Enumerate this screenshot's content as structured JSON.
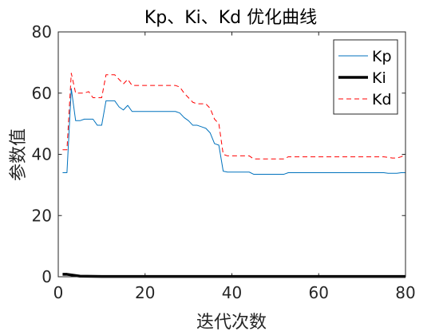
{
  "chart_data": {
    "type": "line",
    "title": "Kp、Ki、Kd 优化曲线",
    "xlabel": "迭代次数",
    "ylabel": "参数值",
    "xlim": [
      0,
      80
    ],
    "ylim": [
      0,
      80
    ],
    "xticks": [
      "0",
      "20",
      "40",
      "60",
      "80"
    ],
    "yticks": [
      "0",
      "20",
      "40",
      "60",
      "80"
    ],
    "grid": false,
    "legend_position": "top-right",
    "series": [
      {
        "name": "Kp",
        "color": "#0072BD",
        "style": "solid",
        "width": 1,
        "x": [
          1,
          2,
          3,
          4,
          5,
          6,
          7,
          8,
          9,
          10,
          11,
          12,
          13,
          14,
          15,
          16,
          17,
          18,
          19,
          20,
          21,
          22,
          23,
          24,
          25,
          26,
          27,
          28,
          29,
          30,
          31,
          32,
          33,
          34,
          35,
          36,
          37,
          38,
          39,
          40,
          41,
          42,
          43,
          44,
          45,
          46,
          47,
          48,
          49,
          50,
          51,
          52,
          53,
          54,
          55,
          56,
          57,
          58,
          59,
          60,
          61,
          62,
          63,
          64,
          65,
          66,
          67,
          68,
          69,
          70,
          71,
          72,
          73,
          74,
          75,
          76,
          77,
          78,
          79,
          80
        ],
        "y": [
          34,
          34,
          61.5,
          51,
          51,
          51.5,
          51.5,
          51.5,
          49.5,
          49.5,
          57.5,
          57.5,
          57.5,
          55.5,
          54.5,
          56,
          54,
          54,
          54,
          54,
          54,
          54,
          54,
          54,
          54,
          54,
          54,
          53.5,
          52,
          51,
          49.5,
          49.5,
          49,
          48.5,
          47,
          43.5,
          43,
          34.5,
          34.2,
          34.2,
          34.2,
          34.2,
          34.2,
          34.2,
          33.5,
          33.5,
          33.5,
          33.5,
          33.5,
          33.5,
          33.5,
          33.5,
          34,
          34,
          34,
          34,
          34,
          34,
          34,
          34,
          34,
          34,
          34,
          34,
          34,
          34,
          34,
          34,
          34,
          34,
          34,
          34,
          34,
          34,
          34,
          33.8,
          33.8,
          33.8,
          34,
          34
        ]
      },
      {
        "name": "Ki",
        "color": "#000000",
        "style": "solid",
        "width": 3.5,
        "x": [
          1,
          2,
          3,
          4,
          5,
          10,
          20,
          30,
          40,
          50,
          60,
          70,
          80
        ],
        "y": [
          0.8,
          0.8,
          0.6,
          0.4,
          0.2,
          0.1,
          0.1,
          0.1,
          0.1,
          0.1,
          0.1,
          0.1,
          0.1
        ]
      },
      {
        "name": "Kd",
        "color": "#FF0000",
        "style": "dashed",
        "width": 1,
        "x": [
          1,
          2,
          3,
          4,
          5,
          6,
          7,
          8,
          9,
          10,
          11,
          12,
          13,
          14,
          15,
          16,
          17,
          18,
          19,
          20,
          21,
          22,
          23,
          24,
          25,
          26,
          27,
          28,
          29,
          30,
          31,
          32,
          33,
          34,
          35,
          36,
          37,
          38,
          39,
          40,
          41,
          42,
          43,
          44,
          45,
          46,
          47,
          48,
          49,
          50,
          51,
          52,
          53,
          54,
          55,
          56,
          57,
          58,
          59,
          60,
          61,
          62,
          63,
          64,
          65,
          66,
          67,
          68,
          69,
          70,
          71,
          72,
          73,
          74,
          75,
          76,
          77,
          78,
          79,
          80
        ],
        "y": [
          41.5,
          41.5,
          66.5,
          60,
          60,
          60,
          60.5,
          58.5,
          58.5,
          58.5,
          66,
          66,
          66,
          64.5,
          63,
          64.5,
          62.5,
          62.5,
          62.5,
          62.5,
          62.5,
          62.5,
          62.5,
          62.5,
          62.5,
          62.5,
          62.5,
          62,
          60,
          58.5,
          57,
          56.5,
          56.5,
          56.5,
          55,
          51.5,
          50,
          40,
          39.5,
          39.5,
          39.5,
          39.5,
          39.5,
          39.5,
          38.5,
          38.5,
          38.5,
          38.5,
          38.5,
          38.5,
          38.5,
          38.5,
          39.2,
          39.2,
          39.2,
          39.2,
          39.2,
          39.2,
          39.2,
          39.2,
          39.2,
          39.2,
          39.2,
          39.2,
          39.2,
          39.2,
          39.2,
          39.2,
          39.2,
          39.2,
          39.2,
          39.2,
          39.2,
          39.2,
          39.2,
          39,
          38.8,
          38.8,
          39.2,
          40
        ]
      }
    ]
  }
}
